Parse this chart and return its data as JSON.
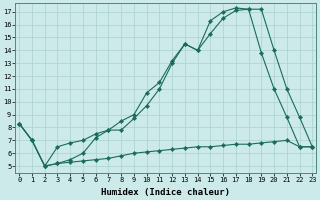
{
  "title": "",
  "xlabel": "Humidex (Indice chaleur)",
  "ylabel": "",
  "bg_color": "#cceaea",
  "grid_color": "#b0d4d4",
  "line_color": "#1a6b5a",
  "line1_x": [
    0,
    1,
    2,
    3,
    4,
    5,
    6,
    7,
    8,
    9,
    10,
    11,
    12,
    13,
    14,
    15,
    16,
    17,
    18,
    19,
    20,
    21,
    22,
    23
  ],
  "line1_y": [
    8.3,
    7.0,
    5.0,
    5.2,
    5.3,
    5.4,
    5.5,
    5.6,
    5.8,
    6.0,
    6.1,
    6.2,
    6.3,
    6.4,
    6.5,
    6.5,
    6.6,
    6.7,
    6.7,
    6.8,
    6.9,
    7.0,
    6.5,
    6.5
  ],
  "line2_x": [
    0,
    1,
    2,
    3,
    4,
    5,
    6,
    7,
    8,
    9,
    10,
    11,
    12,
    13,
    14,
    15,
    16,
    17,
    18,
    19,
    20,
    21,
    22,
    23
  ],
  "line2_y": [
    8.3,
    7.0,
    5.0,
    6.5,
    6.8,
    7.0,
    7.5,
    7.8,
    8.5,
    9.0,
    10.7,
    11.5,
    13.2,
    14.5,
    14.0,
    15.3,
    16.5,
    17.1,
    17.2,
    17.2,
    14.0,
    11.0,
    8.8,
    6.5
  ],
  "line3_x": [
    0,
    1,
    2,
    3,
    4,
    5,
    6,
    7,
    8,
    9,
    10,
    11,
    12,
    13,
    14,
    15,
    16,
    17,
    18,
    19,
    20,
    21,
    22,
    23
  ],
  "line3_y": [
    8.3,
    7.0,
    5.0,
    5.2,
    5.5,
    6.0,
    7.2,
    7.8,
    7.8,
    8.7,
    9.7,
    11.0,
    13.0,
    14.5,
    14.0,
    16.3,
    17.0,
    17.3,
    17.2,
    13.8,
    11.0,
    8.8,
    6.5,
    6.5
  ],
  "xlim": [
    -0.3,
    23.3
  ],
  "ylim": [
    4.5,
    17.7
  ],
  "xticks": [
    0,
    1,
    2,
    3,
    4,
    5,
    6,
    7,
    8,
    9,
    10,
    11,
    12,
    13,
    14,
    15,
    16,
    17,
    18,
    19,
    20,
    21,
    22,
    23
  ],
  "yticks": [
    5,
    6,
    7,
    8,
    9,
    10,
    11,
    12,
    13,
    14,
    15,
    16,
    17
  ],
  "tick_fontsize": 5.0,
  "xlabel_fontsize": 6.5,
  "marker_size": 2.2,
  "linewidth": 0.8
}
